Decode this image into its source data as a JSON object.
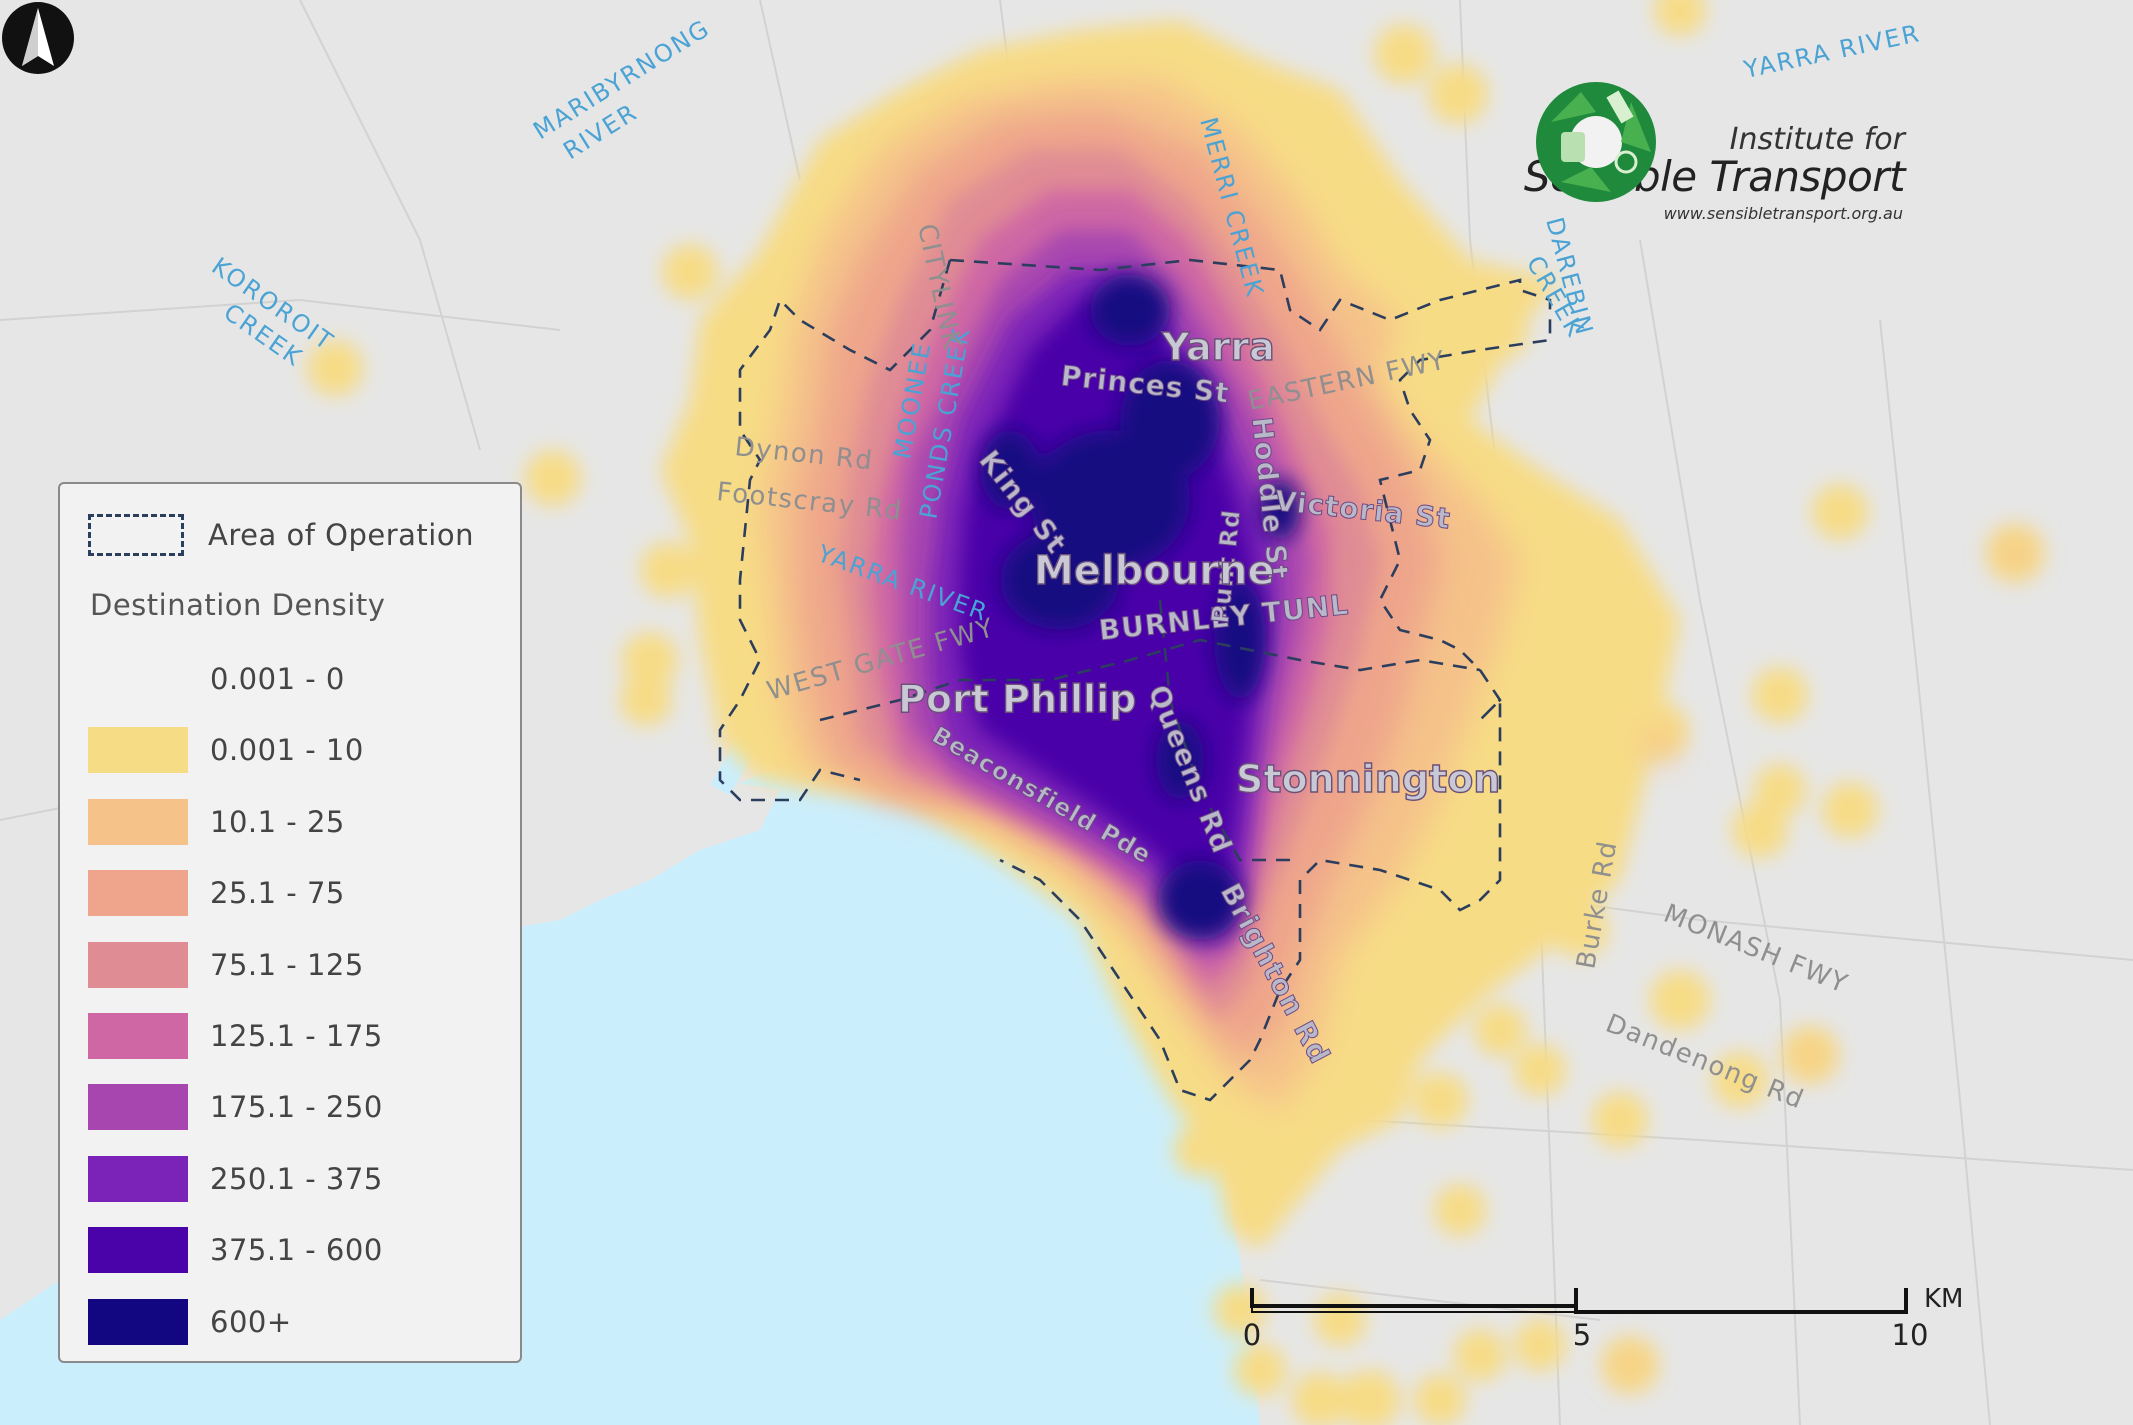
{
  "legend": {
    "area_label": "Area of Operation",
    "heading": "Destination Density",
    "classes": [
      {
        "label": "0.001 - 0",
        "color": "#f2f2f2"
      },
      {
        "label": "0.001 - 10",
        "color": "#f7dc86"
      },
      {
        "label": "10.1 - 25",
        "color": "#f5c28a"
      },
      {
        "label": "25.1 - 75",
        "color": "#eea58b"
      },
      {
        "label": "75.1 - 125",
        "color": "#e08c94"
      },
      {
        "label": "125.1 - 175",
        "color": "#cf67a4"
      },
      {
        "label": "175.1 - 250",
        "color": "#a846b0"
      },
      {
        "label": "250.1 - 375",
        "color": "#7b22b8"
      },
      {
        "label": "375.1 - 600",
        "color": "#4a03a8"
      },
      {
        "label": "600+",
        "color": "#130781"
      }
    ]
  },
  "logo": {
    "line1": "Institute for",
    "line2": "Sensible Transport",
    "url": "www.sensibletransport.org.au"
  },
  "scale": {
    "ticks": [
      "0",
      "5",
      "10"
    ],
    "unit": "KM"
  },
  "regions": {
    "melbourne": "Melbourne",
    "yarra": "Yarra",
    "port_phillip": "Port Phillip",
    "stonnington": "Stonnington"
  },
  "roads": {
    "princes_st": "Princes St",
    "eastern_fwy": "EASTERN FWY",
    "king_st": "King St",
    "hoddle_st": "Hoddle St",
    "victoria_st": "Victoria St",
    "burnley_tunl": "BURNLEY TUNL",
    "west_gate_fwy": "WEST GATE FWY",
    "dynon_rd": "Dynon Rd",
    "footscray_rd": "Footscray Rd",
    "citylink": "CITYLINK",
    "punt_rd": "Punt Rd",
    "queens_rd": "Queens Rd",
    "beaconsfield_pde": "Beaconsfield Pde",
    "brighton_rd": "Brighton Rd",
    "burke_rd": "Burke Rd",
    "monash_fwy": "MONASH FWY",
    "dandenong_rd": "Dandenong Rd"
  },
  "waterways": {
    "maribyrnong_1": "MARIBYRNONG",
    "maribyrnong_2": "RIVER",
    "kororoit_1": "KOROROIT",
    "kororoit_2": "CREEK",
    "yarra_river_ne": "YARRA RIVER",
    "yarra_river": "YARRA RIVER",
    "merri_creek": "MERRI CREEK",
    "darebin_1": "DAREBIN",
    "darebin_2": "CREEK",
    "moonee_1": "MOONEE",
    "moonee_2": "PONDS CREEK"
  }
}
